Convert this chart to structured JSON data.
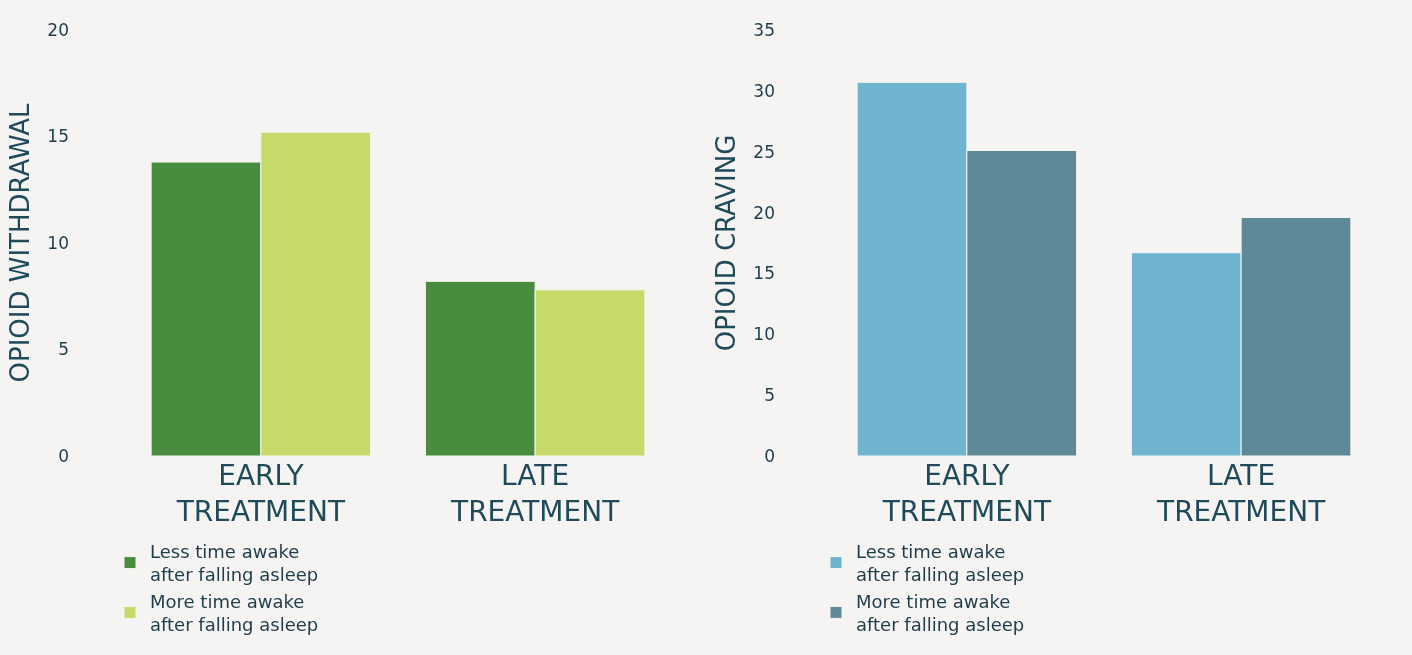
{
  "chart_data": [
    {
      "type": "bar",
      "ylabel": "OPIOID WITHDRAWAL",
      "categories": [
        "EARLY TREATMENT",
        "LATE TREATMENT"
      ],
      "ylim": [
        0,
        20
      ],
      "yticks": [
        0,
        5,
        10,
        15,
        20
      ],
      "grid": false,
      "legend": "bottom",
      "series": [
        {
          "name": "Less time awake after falling asleep",
          "color": "#4a8c3f",
          "values": [
            13.8,
            8.2
          ]
        },
        {
          "name": "More time awake after falling asleep",
          "color": "#c5da68",
          "values": [
            15.2,
            7.8
          ]
        }
      ]
    },
    {
      "type": "bar",
      "ylabel": "OPIOID CRAVING",
      "categories": [
        "EARLY TREATMENT",
        "LATE TREATMENT"
      ],
      "ylim": [
        0,
        35
      ],
      "yticks": [
        0,
        5,
        10,
        15,
        20,
        25,
        30,
        35
      ],
      "grid": false,
      "legend": "bottom",
      "series": [
        {
          "name": "Less time awake after falling asleep",
          "color": "#6fb4ce",
          "values": [
            30.7,
            16.7
          ]
        },
        {
          "name": "More time awake after falling asleep",
          "color": "#5d8a96",
          "values": [
            25.1,
            19.6
          ]
        }
      ]
    }
  ]
}
